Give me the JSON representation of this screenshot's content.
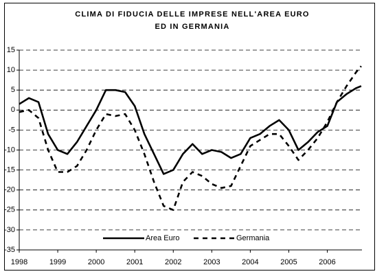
{
  "chart_data": {
    "type": "line",
    "title": "CLIMA DI FIDUCIA DELLE IMPRESE NELL'AREA EURO ED IN GERMANIA",
    "x": [
      1998,
      1998.25,
      1998.5,
      1998.75,
      1999,
      1999.25,
      1999.5,
      1999.75,
      2000,
      2000.25,
      2000.5,
      2000.75,
      2001,
      2001.25,
      2001.5,
      2001.75,
      2002,
      2002.25,
      2002.5,
      2002.75,
      2003,
      2003.25,
      2003.5,
      2003.75,
      2004,
      2004.25,
      2004.5,
      2004.75,
      2005,
      2005.25,
      2005.5,
      2005.75,
      2006,
      2006.25,
      2006.5,
      2006.75,
      2006.88
    ],
    "series": [
      {
        "name": "Area Euro",
        "color": "#000000",
        "dash": "solid",
        "values": [
          1.5,
          3,
          2,
          -6,
          -10,
          -11,
          -8,
          -4,
          0,
          5,
          5,
          4.5,
          1,
          -6,
          -11,
          -16,
          -15,
          -11,
          -8.5,
          -11,
          -10,
          -10.5,
          -12,
          -11,
          -7,
          -6,
          -4,
          -2.5,
          -5,
          -10,
          -8,
          -5.5,
          -4,
          2,
          4,
          5.5,
          6
        ]
      },
      {
        "name": "Germania",
        "color": "#000000",
        "dash": "dashed",
        "values": [
          -0.5,
          0,
          -2,
          -10,
          -15.5,
          -15.5,
          -14,
          -10,
          -5,
          -1,
          -1.5,
          -1,
          -5,
          -11,
          -18,
          -24,
          -25,
          -18,
          -15.5,
          -16.5,
          -18.5,
          -19.5,
          -19,
          -14,
          -9,
          -7.5,
          -6,
          -6,
          -9,
          -12.5,
          -10,
          -7,
          -3,
          2,
          6,
          9.5,
          11
        ]
      }
    ],
    "xlim": [
      1998,
      2006.9
    ],
    "xticks": [
      1998,
      1999,
      2000,
      2001,
      2002,
      2003,
      2004,
      2005,
      2006
    ],
    "ylim": [
      -35,
      15
    ],
    "yticks": [
      -35,
      -30,
      -25,
      -20,
      -15,
      -10,
      -5,
      0,
      5,
      10,
      15
    ],
    "grid": true,
    "legend": "bottom"
  }
}
